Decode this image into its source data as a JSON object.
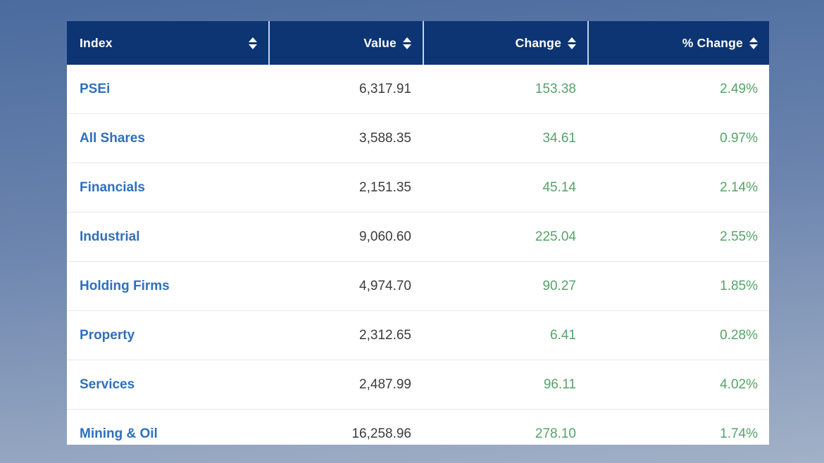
{
  "chart_data": {
    "type": "table",
    "columns": [
      {
        "label": "Index",
        "key": "index",
        "align": "left"
      },
      {
        "label": "Value",
        "key": "value",
        "align": "right"
      },
      {
        "label": "Change",
        "key": "change",
        "align": "right"
      },
      {
        "label": "% Change",
        "key": "pct_change",
        "align": "right"
      }
    ],
    "rows": [
      {
        "index": "PSEi",
        "value": "6,317.91",
        "change": "153.38",
        "pct_change": "2.49%"
      },
      {
        "index": "All Shares",
        "value": "3,588.35",
        "change": "34.61",
        "pct_change": "0.97%"
      },
      {
        "index": "Financials",
        "value": "2,151.35",
        "change": "45.14",
        "pct_change": "2.14%"
      },
      {
        "index": "Industrial",
        "value": "9,060.60",
        "change": "225.04",
        "pct_change": "2.55%"
      },
      {
        "index": "Holding Firms",
        "value": "4,974.70",
        "change": "90.27",
        "pct_change": "1.85%"
      },
      {
        "index": "Property",
        "value": "2,312.65",
        "change": "6.41",
        "pct_change": "0.28%"
      },
      {
        "index": "Services",
        "value": "2,487.99",
        "change": "96.11",
        "pct_change": "4.02%"
      },
      {
        "index": "Mining & Oil",
        "value": "16,258.96",
        "change": "278.10",
        "pct_change": "1.74%"
      }
    ]
  },
  "icons": {
    "sort": "up-down-triangles"
  },
  "colors": {
    "header_bg": "#0d3574",
    "header_text": "#ffffff",
    "header_separator": "#c3d2e8",
    "index_link_blue": "#2d70bd",
    "value_text": "#3b3b3b",
    "positive_green": "#55a368",
    "row_divider": "#e8e8e8",
    "background_top": "#4a6b9e",
    "background_bottom": "#a2b1c7"
  }
}
